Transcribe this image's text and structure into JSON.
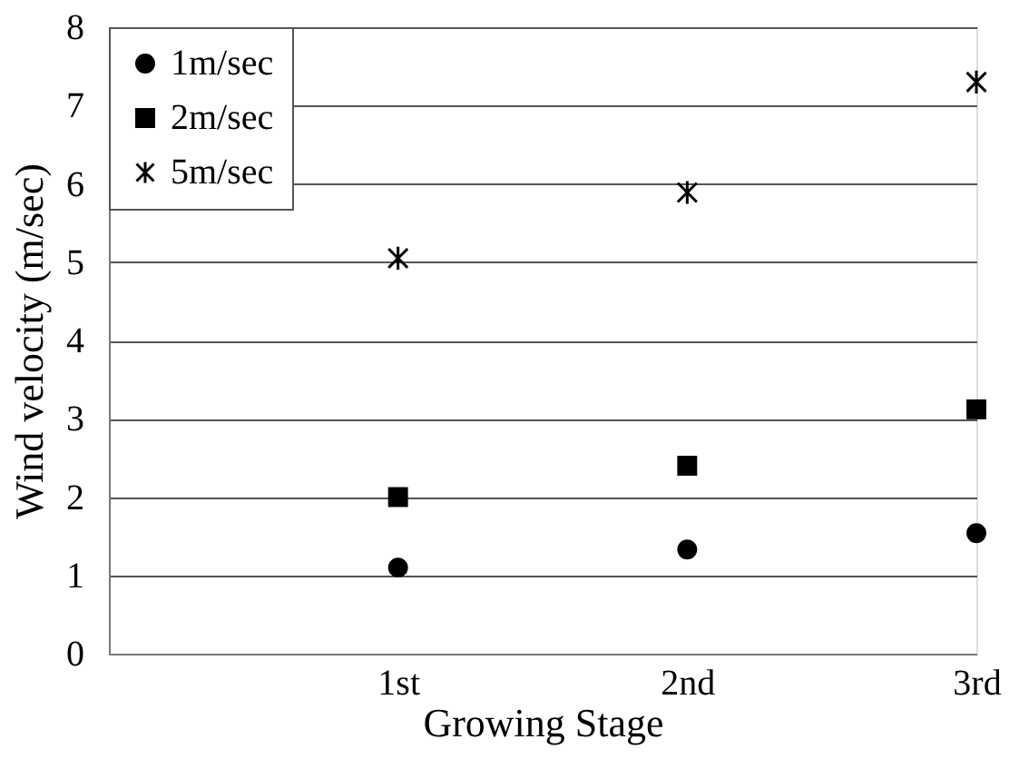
{
  "chart_data": {
    "type": "scatter",
    "xlabel": "Growing Stage",
    "ylabel": "Wind velocity (m/sec)",
    "x": [
      1,
      2,
      3
    ],
    "xlim": [
      0,
      3
    ],
    "xticks": [
      {
        "value": 1,
        "label": "1st"
      },
      {
        "value": 2,
        "label": "2nd"
      },
      {
        "value": 3,
        "label": "3rd"
      }
    ],
    "ylim": [
      0,
      8
    ],
    "yticks": [
      0,
      1,
      2,
      3,
      4,
      5,
      6,
      7,
      8
    ],
    "grid": "y",
    "legend": "top left",
    "series": [
      {
        "name": "1m/sec",
        "color": "#000000",
        "marker": "circle",
        "values": [
          1.1,
          1.33,
          1.54
        ]
      },
      {
        "name": "2m/sec",
        "color": "#000000",
        "marker": "square",
        "values": [
          2.0,
          2.4,
          3.12
        ]
      },
      {
        "name": "5m/sec",
        "color": "#000000",
        "marker": "cross",
        "values": [
          5.05,
          5.89,
          7.3
        ]
      }
    ]
  }
}
